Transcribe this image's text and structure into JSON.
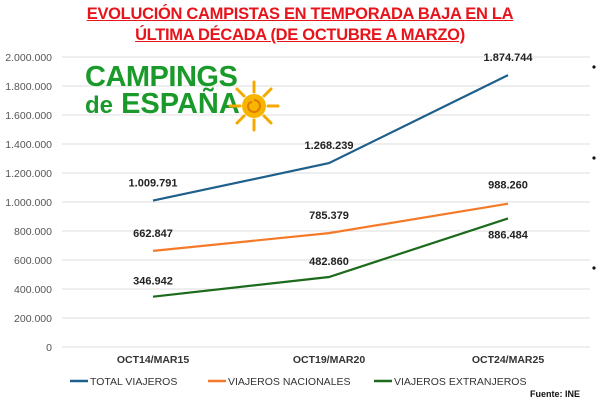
{
  "title_line1": "EVOLUCIÓN CAMPISTAS EN TEMPORADA BAJA EN LA",
  "title_line2": "ÚLTIMA DÉCADA (DE OCTUBRE A MARZO)",
  "logo": {
    "line1": "CAMPINGS",
    "line2_a": "de",
    "line2_b": "ESPAÑA"
  },
  "source": "Fuente: INE",
  "chart_data": {
    "type": "line",
    "title": "EVOLUCIÓN CAMPISTAS EN TEMPORADA BAJA EN LA ÚLTIMA DÉCADA (DE OCTUBRE A MARZO)",
    "categories": [
      "OCT14/MAR15",
      "OCT19/MAR20",
      "OCT24/MAR25"
    ],
    "ylim": [
      0,
      2000000
    ],
    "yticks": [
      0,
      200000,
      400000,
      600000,
      800000,
      1000000,
      1200000,
      1400000,
      1600000,
      1800000,
      2000000
    ],
    "ytick_labels": [
      "0",
      "200.000",
      "400.000",
      "600.000",
      "800.000",
      "1.000.000",
      "1.200.000",
      "1.400.000",
      "1.600.000",
      "1.800.000",
      "2.000.000"
    ],
    "grid": true,
    "legend_position": "bottom",
    "series": [
      {
        "name": "TOTAL VIAJEROS",
        "color": "#1f5f8b",
        "values": [
          1009791,
          1268239,
          1874744
        ],
        "labels": [
          "1.009.791",
          "1.268.239",
          "1.874.744"
        ]
      },
      {
        "name": "VIAJEROS NACIONALES",
        "color": "#f47a2a",
        "values": [
          662847,
          785379,
          988260
        ],
        "labels": [
          "662.847",
          "785.379",
          "988.260"
        ]
      },
      {
        "name": "VIAJEROS EXTRANJEROS",
        "color": "#1c6b1c",
        "values": [
          346942,
          482860,
          886484
        ],
        "labels": [
          "346.942",
          "482.860",
          "886.484"
        ]
      }
    ]
  }
}
